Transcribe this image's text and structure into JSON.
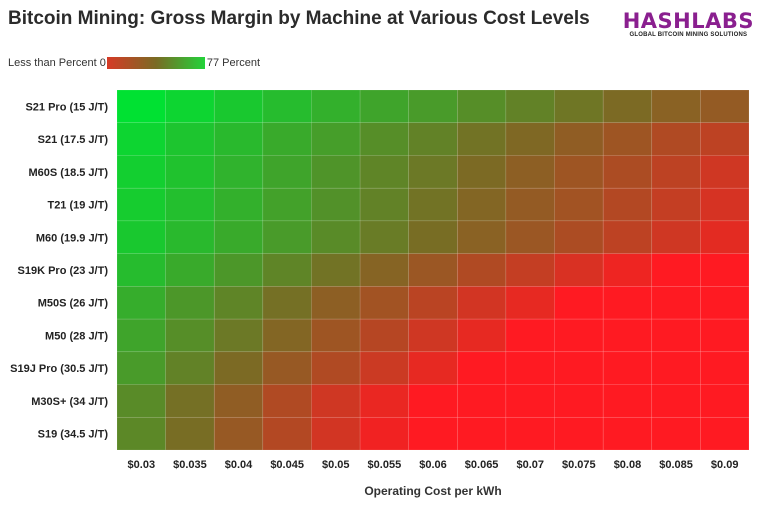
{
  "title": "Bitcoin Mining: Gross Margin by Machine at Various Cost Levels",
  "logo": {
    "name": "HASHLABS",
    "tagline": "GLOBAL BITCOIN MINING SOLUTIONS",
    "color": "#8a1f8f"
  },
  "legend": {
    "min_label": "Less than Percent 0",
    "max_label": "77 Percent"
  },
  "chart_data": {
    "type": "heatmap",
    "title": "Bitcoin Mining: Gross Margin by Machine at Various Cost Levels",
    "xlabel": "Operating Cost per kWh",
    "ylabel": "",
    "value_unit": "percent gross margin (approx.)",
    "color_scale": {
      "min": 0,
      "max": 77,
      "low_color": "#ff1a22",
      "mid_color": "#7a6b24",
      "high_color": "#00e132"
    },
    "x_categories": [
      "$0.03",
      "$0.035",
      "$0.04",
      "$0.045",
      "$0.05",
      "$0.055",
      "$0.06",
      "$0.065",
      "$0.07",
      "$0.075",
      "$0.08",
      "$0.085",
      "$0.09"
    ],
    "y_categories": [
      "S21 Pro (15 J/T)",
      "S21 (17.5 J/T)",
      "M60S (18.5 J/T)",
      "T21 (19 J/T)",
      "M60 (19.9 J/T)",
      "S19K Pro (23 J/T)",
      "M50S (26 J/T)",
      "M50 (28 J/T)",
      "S19J Pro (30.5 J/T)",
      "M30S+ (34 J/T)",
      "S19 (34.5 J/T)"
    ],
    "values": [
      [
        77,
        73,
        69,
        65,
        61,
        57,
        54,
        50,
        46,
        42,
        38,
        34,
        31
      ],
      [
        73,
        68,
        64,
        59,
        55,
        50,
        46,
        41,
        37,
        32,
        28,
        23,
        19
      ],
      [
        71,
        67,
        62,
        57,
        52,
        47,
        43,
        38,
        33,
        28,
        24,
        19,
        14
      ],
      [
        70,
        66,
        61,
        56,
        51,
        46,
        41,
        36,
        31,
        27,
        22,
        17,
        12
      ],
      [
        69,
        64,
        59,
        54,
        49,
        44,
        39,
        34,
        29,
        24,
        19,
        14,
        8
      ],
      [
        65,
        59,
        53,
        47,
        41,
        35,
        29,
        23,
        17,
        11,
        5,
        0,
        0
      ],
      [
        60,
        53,
        47,
        40,
        33,
        27,
        20,
        13,
        7,
        0,
        0,
        0,
        0
      ],
      [
        57,
        50,
        43,
        36,
        28,
        21,
        14,
        7,
        0,
        0,
        0,
        0,
        0
      ],
      [
        54,
        46,
        38,
        30,
        23,
        15,
        7,
        0,
        0,
        0,
        0,
        0,
        0
      ],
      [
        49,
        40,
        32,
        23,
        14,
        6,
        0,
        0,
        0,
        0,
        0,
        0,
        0
      ],
      [
        48,
        39,
        30,
        22,
        13,
        4,
        0,
        0,
        0,
        0,
        0,
        0,
        0
      ]
    ]
  }
}
